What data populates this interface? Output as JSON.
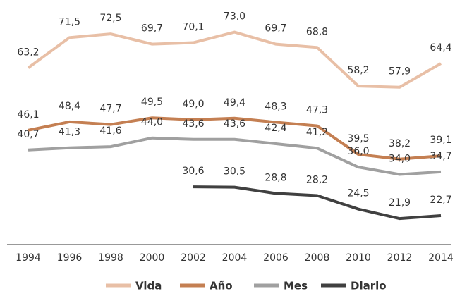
{
  "chart_data": {
    "type": "line",
    "categories": [
      "1994",
      "1996",
      "1998",
      "2000",
      "2002",
      "2004",
      "2006",
      "2008",
      "2010",
      "2012",
      "2014"
    ],
    "series": [
      {
        "name": "Vida",
        "color": "#e8bfa6",
        "values": [
          63.2,
          71.5,
          72.5,
          69.7,
          70.1,
          73.0,
          69.7,
          68.8,
          58.2,
          57.9,
          64.4
        ],
        "value_labels": [
          "63,2",
          "71,5",
          "72,5",
          "69,7",
          "70,1",
          "73,0",
          "69,7",
          "68,8",
          "58,2",
          "57,9",
          "64,4"
        ]
      },
      {
        "name": "Año",
        "color": "#c47f52",
        "values": [
          46.1,
          48.4,
          47.7,
          49.5,
          49.0,
          49.4,
          48.3,
          47.3,
          39.5,
          38.2,
          39.1
        ],
        "value_labels": [
          "46,1",
          "48,4",
          "47,7",
          "49,5",
          "49,0",
          "49,4",
          "48,3",
          "47,3",
          "39,5",
          "38,2",
          "39,1"
        ]
      },
      {
        "name": "Mes",
        "color": "#a0a0a0",
        "values": [
          40.7,
          41.3,
          41.6,
          44.0,
          43.6,
          43.6,
          42.4,
          41.2,
          36.0,
          34.0,
          34.7
        ],
        "value_labels": [
          "40,7",
          "41,3",
          "41,6",
          "44,0",
          "43,6",
          "43,6",
          "42,4",
          "41,2",
          "36,0",
          "34,0",
          "34,7"
        ]
      },
      {
        "name": "Diario",
        "color": "#404040",
        "values": [
          null,
          null,
          null,
          null,
          30.6,
          30.5,
          28.8,
          28.2,
          24.5,
          21.9,
          22.7
        ],
        "value_labels": [
          null,
          null,
          null,
          null,
          "30,6",
          "30,5",
          "28,8",
          "28,2",
          "24,5",
          "21,9",
          "22,7"
        ]
      }
    ],
    "ylim": [
      20,
      76
    ],
    "legend": "bottom"
  }
}
